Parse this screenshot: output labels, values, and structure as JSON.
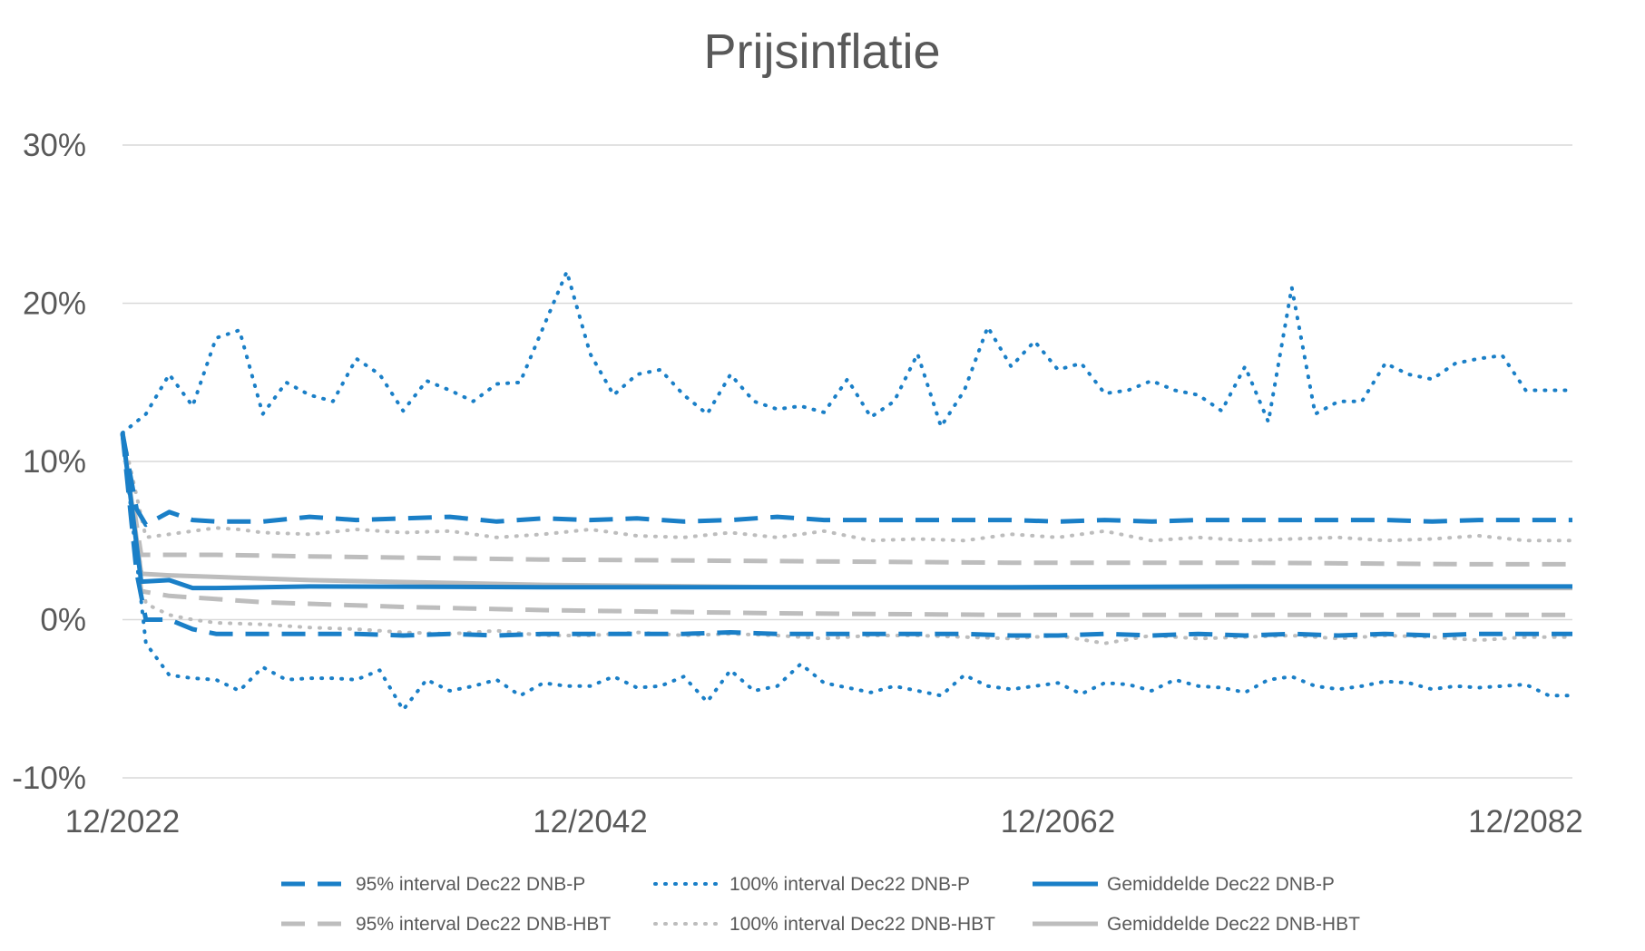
{
  "chart_data": {
    "type": "line",
    "title": "Prijsinflatie",
    "xlabel": "",
    "ylabel": "",
    "x_tick_labels": [
      "12/2022",
      "12/2042",
      "12/2062",
      "12/2082"
    ],
    "x_range": [
      2022,
      2084
    ],
    "y_tick_labels": [
      "30%",
      "20%",
      "10%",
      "0%",
      "-10%"
    ],
    "y_ticks": [
      30,
      20,
      10,
      0,
      -10
    ],
    "ylim": [
      -10,
      30
    ],
    "y_unit": "%",
    "grid": "horizontal",
    "legend_position": "bottom",
    "colors": {
      "blue": "#1a7fc7",
      "gray": "#bdbdbd",
      "gridline": "#d9d9d9",
      "text": "#595959"
    },
    "series": [
      {
        "name": "95% interval Dec22 DNB-P",
        "color": "#1a7fc7",
        "style": "dashed",
        "upper": {
          "x": [
            2022,
            2022.6,
            2023,
            2024,
            2025,
            2026,
            2028,
            2030,
            2032,
            2034,
            2036,
            2038,
            2040,
            2042,
            2044,
            2046,
            2048,
            2050,
            2052,
            2054,
            2056,
            2058,
            2060,
            2062,
            2064,
            2066,
            2068,
            2070,
            2072,
            2074,
            2076,
            2078,
            2080,
            2082,
            2084
          ],
          "y": [
            11.8,
            7.0,
            6.0,
            6.8,
            6.3,
            6.2,
            6.2,
            6.5,
            6.3,
            6.4,
            6.5,
            6.2,
            6.4,
            6.3,
            6.4,
            6.2,
            6.3,
            6.5,
            6.3,
            6.3,
            6.3,
            6.3,
            6.3,
            6.2,
            6.3,
            6.2,
            6.3,
            6.3,
            6.3,
            6.3,
            6.3,
            6.2,
            6.3,
            6.3,
            6.3
          ]
        },
        "lower": {
          "x": [
            2022,
            2022.6,
            2023,
            2024,
            2025,
            2026,
            2028,
            2030,
            2032,
            2034,
            2036,
            2038,
            2040,
            2042,
            2044,
            2046,
            2048,
            2050,
            2052,
            2054,
            2056,
            2058,
            2060,
            2062,
            2064,
            2066,
            2068,
            2070,
            2072,
            2074,
            2076,
            2078,
            2080,
            2082,
            2084
          ],
          "y": [
            11.8,
            3.0,
            0.0,
            0.0,
            -0.6,
            -0.9,
            -0.9,
            -0.9,
            -0.9,
            -1.0,
            -0.9,
            -1.0,
            -0.9,
            -0.9,
            -0.9,
            -0.9,
            -0.8,
            -0.9,
            -0.9,
            -0.9,
            -0.9,
            -0.9,
            -1.0,
            -1.0,
            -0.9,
            -1.0,
            -0.9,
            -1.0,
            -0.9,
            -1.0,
            -0.9,
            -1.0,
            -0.9,
            -0.9,
            -0.9
          ]
        }
      },
      {
        "name": "100% interval Dec22 DNB-P",
        "color": "#1a7fc7",
        "style": "dotted",
        "upper": {
          "x": [
            2022,
            2023,
            2024,
            2025,
            2026,
            2027,
            2028,
            2029,
            2030,
            2031,
            2032,
            2033,
            2034,
            2035,
            2036,
            2037,
            2038,
            2039,
            2040,
            2041,
            2042,
            2043,
            2044,
            2045,
            2046,
            2047,
            2048,
            2049,
            2050,
            2051,
            2052,
            2053,
            2054,
            2055,
            2056,
            2057,
            2058,
            2059,
            2060,
            2061,
            2062,
            2063,
            2064,
            2065,
            2066,
            2067,
            2068,
            2069,
            2070,
            2071,
            2072,
            2073,
            2074,
            2075,
            2076,
            2077,
            2078,
            2079,
            2080,
            2081,
            2082,
            2083,
            2084
          ],
          "y": [
            11.8,
            13.0,
            15.5,
            13.5,
            17.8,
            18.3,
            13.0,
            15.0,
            14.2,
            13.8,
            16.5,
            15.5,
            13.2,
            15.1,
            14.5,
            13.8,
            14.9,
            15.0,
            18.5,
            22.0,
            16.8,
            14.2,
            15.5,
            15.8,
            14.2,
            13.0,
            15.5,
            13.8,
            13.3,
            13.5,
            13.1,
            15.2,
            12.8,
            13.8,
            16.8,
            12.2,
            14.5,
            18.5,
            16.0,
            17.6,
            15.8,
            16.2,
            14.3,
            14.5,
            15.1,
            14.5,
            14.2,
            13.2,
            16.0,
            12.5,
            21.0,
            13.0,
            13.8,
            13.8,
            16.2,
            15.5,
            15.2,
            16.2,
            16.5,
            16.7,
            14.5,
            14.5,
            14.5
          ]
        },
        "lower": {
          "x": [
            2022,
            2023,
            2024,
            2025,
            2026,
            2027,
            2028,
            2029,
            2030,
            2031,
            2032,
            2033,
            2034,
            2035,
            2036,
            2037,
            2038,
            2039,
            2040,
            2041,
            2042,
            2043,
            2044,
            2045,
            2046,
            2047,
            2048,
            2049,
            2050,
            2051,
            2052,
            2053,
            2054,
            2055,
            2056,
            2057,
            2058,
            2059,
            2060,
            2061,
            2062,
            2063,
            2064,
            2065,
            2066,
            2067,
            2068,
            2069,
            2070,
            2071,
            2072,
            2073,
            2074,
            2075,
            2076,
            2077,
            2078,
            2079,
            2080,
            2081,
            2082,
            2083,
            2084
          ],
          "y": [
            11.8,
            -1.5,
            -3.5,
            -3.7,
            -3.8,
            -4.5,
            -3.0,
            -3.8,
            -3.7,
            -3.7,
            -3.8,
            -3.2,
            -5.7,
            -3.8,
            -4.5,
            -4.2,
            -3.8,
            -4.8,
            -4.0,
            -4.2,
            -4.2,
            -3.6,
            -4.3,
            -4.2,
            -3.6,
            -5.2,
            -3.2,
            -4.5,
            -4.2,
            -2.8,
            -4.0,
            -4.3,
            -4.6,
            -4.2,
            -4.5,
            -4.8,
            -3.5,
            -4.2,
            -4.4,
            -4.2,
            -4.0,
            -4.7,
            -4.0,
            -4.1,
            -4.5,
            -3.8,
            -4.2,
            -4.3,
            -4.6,
            -3.8,
            -3.6,
            -4.2,
            -4.4,
            -4.2,
            -3.9,
            -4.0,
            -4.4,
            -4.2,
            -4.3,
            -4.2,
            -4.1,
            -4.8,
            -4.8
          ]
        }
      },
      {
        "name": "Gemiddelde Dec22 DNB-P",
        "color": "#1a7fc7",
        "style": "solid",
        "x": [
          2022,
          2022.8,
          2024,
          2025,
          2026,
          2030,
          2040,
          2050,
          2060,
          2070,
          2080,
          2084
        ],
        "y": [
          11.8,
          2.4,
          2.5,
          2.0,
          2.0,
          2.1,
          2.05,
          2.05,
          2.05,
          2.1,
          2.1,
          2.1
        ]
      },
      {
        "name": "95% interval Dec22 DNB-HBT",
        "color": "#bdbdbd",
        "style": "dashed",
        "upper": {
          "x": [
            2022,
            2022.8,
            2024,
            2026,
            2030,
            2040,
            2050,
            2060,
            2070,
            2080,
            2084
          ],
          "y": [
            11.8,
            4.1,
            4.1,
            4.1,
            4.0,
            3.8,
            3.7,
            3.6,
            3.6,
            3.5,
            3.5
          ]
        },
        "lower": {
          "x": [
            2022,
            2022.8,
            2024,
            2026,
            2028,
            2030,
            2034,
            2040,
            2050,
            2060,
            2070,
            2080,
            2084
          ],
          "y": [
            11.8,
            1.8,
            1.5,
            1.3,
            1.1,
            1.0,
            0.8,
            0.6,
            0.4,
            0.3,
            0.3,
            0.3,
            0.3
          ]
        }
      },
      {
        "name": "100% interval Dec22 DNB-HBT",
        "color": "#bdbdbd",
        "style": "dotted",
        "upper": {
          "x": [
            2022,
            2023,
            2024,
            2025,
            2026,
            2027,
            2028,
            2030,
            2032,
            2034,
            2036,
            2038,
            2040,
            2042,
            2044,
            2046,
            2048,
            2050,
            2052,
            2054,
            2056,
            2058,
            2060,
            2062,
            2064,
            2066,
            2068,
            2070,
            2072,
            2074,
            2076,
            2078,
            2080,
            2082,
            2084
          ],
          "y": [
            11.8,
            5.2,
            5.4,
            5.6,
            5.8,
            5.7,
            5.5,
            5.4,
            5.7,
            5.5,
            5.6,
            5.2,
            5.4,
            5.7,
            5.3,
            5.2,
            5.5,
            5.2,
            5.6,
            5.0,
            5.1,
            5.0,
            5.4,
            5.2,
            5.6,
            5.0,
            5.2,
            5.0,
            5.1,
            5.2,
            5.0,
            5.1,
            5.3,
            5.0,
            5.0
          ]
        },
        "lower": {
          "x": [
            2022,
            2023,
            2024,
            2025,
            2026,
            2028,
            2030,
            2032,
            2034,
            2036,
            2038,
            2040,
            2042,
            2044,
            2046,
            2048,
            2050,
            2052,
            2054,
            2056,
            2058,
            2060,
            2062,
            2064,
            2066,
            2068,
            2070,
            2072,
            2074,
            2076,
            2078,
            2080,
            2082,
            2084
          ],
          "y": [
            11.8,
            1.0,
            0.3,
            0.0,
            -0.2,
            -0.3,
            -0.5,
            -0.6,
            -0.8,
            -0.9,
            -0.7,
            -1.0,
            -1.0,
            -0.8,
            -1.0,
            -0.9,
            -1.0,
            -1.2,
            -1.0,
            -1.0,
            -1.1,
            -1.2,
            -1.0,
            -1.5,
            -1.0,
            -1.2,
            -1.1,
            -1.0,
            -1.2,
            -1.0,
            -1.1,
            -1.3,
            -1.1,
            -1.1
          ]
        }
      },
      {
        "name": "Gemiddelde Dec22 DNB-HBT",
        "color": "#bdbdbd",
        "style": "solid",
        "x": [
          2022,
          2022.8,
          2024,
          2026,
          2030,
          2040,
          2050,
          2060,
          2070,
          2080,
          2084
        ],
        "y": [
          11.8,
          2.9,
          2.8,
          2.7,
          2.5,
          2.2,
          2.05,
          2.0,
          2.0,
          2.0,
          2.0
        ]
      }
    ]
  }
}
